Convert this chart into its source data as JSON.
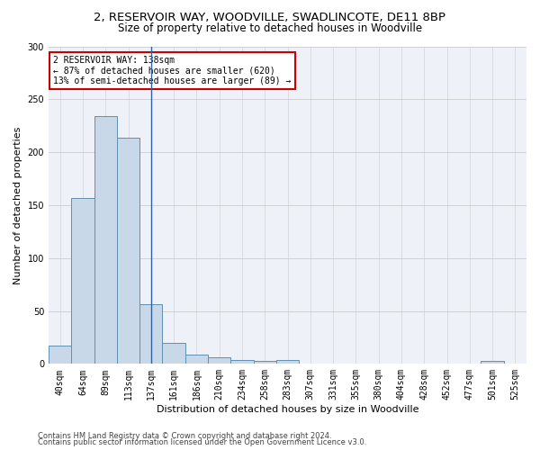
{
  "title1": "2, RESERVOIR WAY, WOODVILLE, SWADLINCOTE, DE11 8BP",
  "title2": "Size of property relative to detached houses in Woodville",
  "xlabel": "Distribution of detached houses by size in Woodville",
  "ylabel": "Number of detached properties",
  "categories": [
    "40sqm",
    "64sqm",
    "89sqm",
    "113sqm",
    "137sqm",
    "161sqm",
    "186sqm",
    "210sqm",
    "234sqm",
    "258sqm",
    "283sqm",
    "307sqm",
    "331sqm",
    "355sqm",
    "380sqm",
    "404sqm",
    "428sqm",
    "452sqm",
    "477sqm",
    "501sqm",
    "525sqm"
  ],
  "values": [
    17,
    157,
    234,
    214,
    56,
    20,
    9,
    6,
    4,
    3,
    4,
    0,
    0,
    0,
    0,
    0,
    0,
    0,
    0,
    3,
    0
  ],
  "bar_color": "#c8d8e8",
  "bar_edge_color": "#6090b0",
  "vline_index": 4,
  "vline_color": "#3060a0",
  "annotation_text": "2 RESERVOIR WAY: 138sqm\n← 87% of detached houses are smaller (620)\n13% of semi-detached houses are larger (89) →",
  "annotation_box_color": "#ffffff",
  "annotation_box_edge_color": "#cc0000",
  "ylim": [
    0,
    300
  ],
  "yticks": [
    0,
    50,
    100,
    150,
    200,
    250,
    300
  ],
  "grid_color": "#cccccc",
  "bg_color": "#eef2f8",
  "footer1": "Contains HM Land Registry data © Crown copyright and database right 2024.",
  "footer2": "Contains public sector information licensed under the Open Government Licence v3.0.",
  "title1_fontsize": 9.5,
  "title2_fontsize": 8.5,
  "tick_fontsize": 7,
  "ylabel_fontsize": 8,
  "xlabel_fontsize": 8,
  "annotation_fontsize": 7,
  "footer_fontsize": 6
}
